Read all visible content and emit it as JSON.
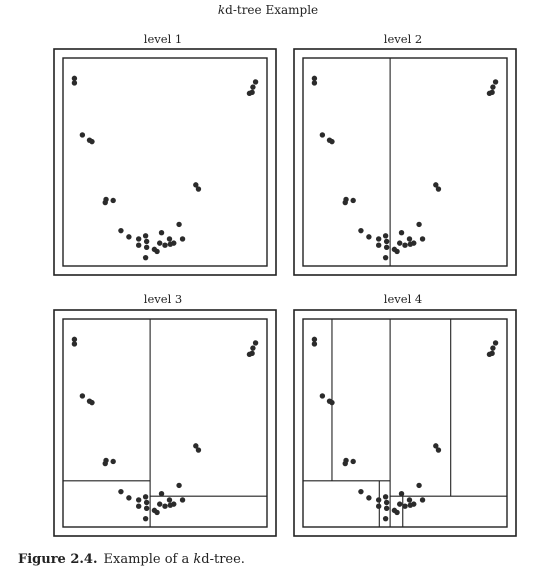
{
  "main_title": "kd-tree Example",
  "main_title_italic": "k",
  "main_title_rest": "d-tree Example",
  "panels": [
    {
      "title": "level 1",
      "splits": []
    },
    {
      "title": "level 2",
      "splits": [
        [
          1,
          "x",
          0.427,
          0,
          0,
          1,
          1
        ]
      ]
    },
    {
      "title": "level 3",
      "splits": [
        [
          1,
          "x",
          0.427,
          0,
          0,
          1,
          1
        ],
        [
          2,
          "y",
          0.222,
          0,
          0,
          0.427,
          1
        ],
        [
          2,
          "y",
          0.148,
          0.427,
          0,
          1,
          1
        ]
      ]
    },
    {
      "title": "level 4",
      "splits": [
        [
          1,
          "x",
          0.427,
          0,
          0,
          1,
          1
        ],
        [
          2,
          "y",
          0.222,
          0,
          0,
          0.427,
          1
        ],
        [
          2,
          "y",
          0.148,
          0.427,
          0,
          1,
          1
        ],
        [
          3,
          "x",
          0.142,
          0,
          0.222,
          0.427,
          1
        ],
        [
          3,
          "x",
          0.374,
          0,
          0,
          0.427,
          0.222
        ],
        [
          3,
          "x",
          0.724,
          0.427,
          0.148,
          1,
          1
        ],
        [
          3,
          "x",
          0.489,
          0.427,
          0,
          1,
          0.148
        ]
      ]
    }
  ],
  "points": [
    [
      0.056,
      0.902
    ],
    [
      0.056,
      0.88
    ],
    [
      0.944,
      0.885
    ],
    [
      0.931,
      0.86
    ],
    [
      0.914,
      0.83
    ],
    [
      0.927,
      0.835
    ],
    [
      0.095,
      0.63
    ],
    [
      0.13,
      0.605
    ],
    [
      0.142,
      0.598
    ],
    [
      0.211,
      0.32
    ],
    [
      0.207,
      0.305
    ],
    [
      0.246,
      0.315
    ],
    [
      0.651,
      0.39
    ],
    [
      0.664,
      0.37
    ],
    [
      0.284,
      0.17
    ],
    [
      0.323,
      0.14
    ],
    [
      0.371,
      0.13
    ],
    [
      0.405,
      0.145
    ],
    [
      0.41,
      0.118
    ],
    [
      0.41,
      0.09
    ],
    [
      0.405,
      0.04
    ],
    [
      0.371,
      0.1
    ],
    [
      0.448,
      0.08
    ],
    [
      0.474,
      0.11
    ],
    [
      0.483,
      0.16
    ],
    [
      0.5,
      0.1
    ],
    [
      0.522,
      0.13
    ],
    [
      0.526,
      0.105
    ],
    [
      0.543,
      0.11
    ],
    [
      0.569,
      0.2
    ],
    [
      0.586,
      0.13
    ],
    [
      0.461,
      0.07
    ]
  ],
  "caption": {
    "label": "Figure 2.4.",
    "text_before": "Example of a ",
    "text_italic": "k",
    "text_after": "d-tree."
  },
  "colors": {
    "point": "#2b2b2b",
    "line": "#222222"
  }
}
